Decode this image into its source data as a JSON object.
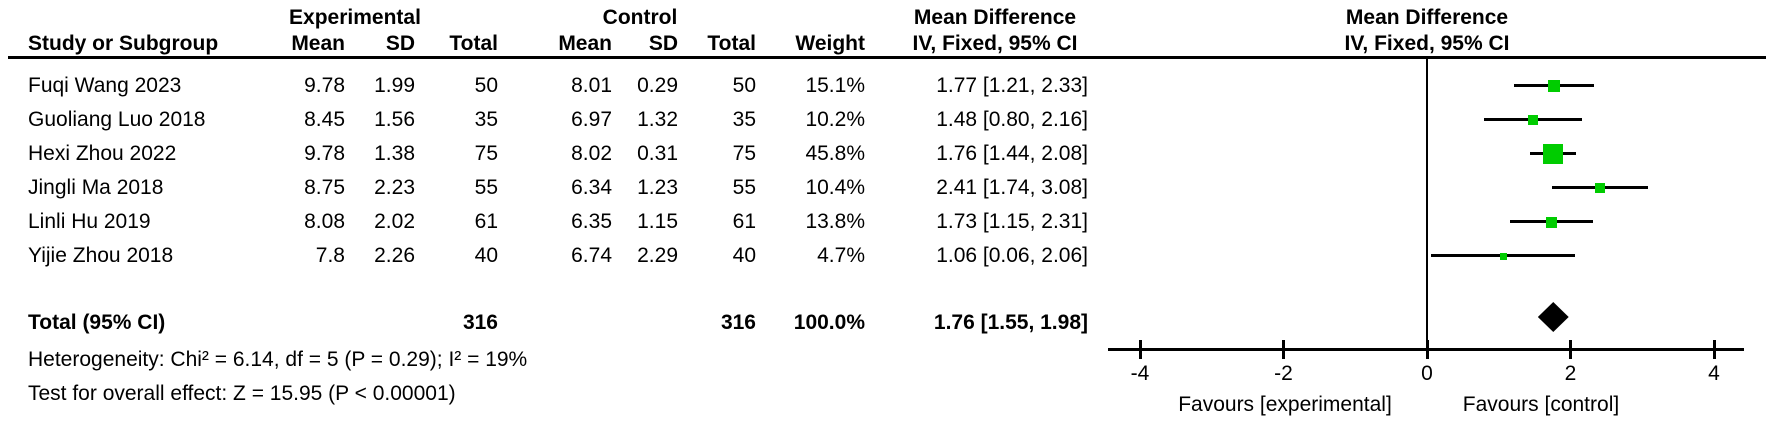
{
  "header": {
    "group_experimental": "Experimental",
    "group_control": "Control",
    "group_md_text": "Mean Difference",
    "group_md_plot": "Mean Difference",
    "col_study": "Study or Subgroup",
    "col_mean_exp": "Mean",
    "col_sd_exp": "SD",
    "col_total_exp": "Total",
    "col_mean_ctrl": "Mean",
    "col_sd_ctrl": "SD",
    "col_total_ctrl": "Total",
    "col_weight": "Weight",
    "col_ci_text": "IV, Fixed, 95% CI",
    "col_ci_plot": "IV, Fixed, 95% CI"
  },
  "studies": [
    {
      "name": "Fuqi Wang 2023",
      "exp_mean": "9.78",
      "exp_sd": "1.99",
      "exp_total": "50",
      "ctrl_mean": "8.01",
      "ctrl_sd": "0.29",
      "ctrl_total": "50",
      "weight": "15.1%",
      "ci_text": "1.77 [1.21, 2.33]",
      "md": 1.77,
      "lo": 1.21,
      "hi": 2.33,
      "weight_pct": 15.1
    },
    {
      "name": "Guoliang Luo 2018",
      "exp_mean": "8.45",
      "exp_sd": "1.56",
      "exp_total": "35",
      "ctrl_mean": "6.97",
      "ctrl_sd": "1.32",
      "ctrl_total": "35",
      "weight": "10.2%",
      "ci_text": "1.48 [0.80, 2.16]",
      "md": 1.48,
      "lo": 0.8,
      "hi": 2.16,
      "weight_pct": 10.2
    },
    {
      "name": "Hexi Zhou 2022",
      "exp_mean": "9.78",
      "exp_sd": "1.38",
      "exp_total": "75",
      "ctrl_mean": "8.02",
      "ctrl_sd": "0.31",
      "ctrl_total": "75",
      "weight": "45.8%",
      "ci_text": "1.76 [1.44, 2.08]",
      "md": 1.76,
      "lo": 1.44,
      "hi": 2.08,
      "weight_pct": 45.8
    },
    {
      "name": "Jingli Ma 2018",
      "exp_mean": "8.75",
      "exp_sd": "2.23",
      "exp_total": "55",
      "ctrl_mean": "6.34",
      "ctrl_sd": "1.23",
      "ctrl_total": "55",
      "weight": "10.4%",
      "ci_text": "2.41 [1.74, 3.08]",
      "md": 2.41,
      "lo": 1.74,
      "hi": 3.08,
      "weight_pct": 10.4
    },
    {
      "name": "Linli Hu 2019",
      "exp_mean": "8.08",
      "exp_sd": "2.02",
      "exp_total": "61",
      "ctrl_mean": "6.35",
      "ctrl_sd": "1.15",
      "ctrl_total": "61",
      "weight": "13.8%",
      "ci_text": "1.73 [1.15, 2.31]",
      "md": 1.73,
      "lo": 1.15,
      "hi": 2.31,
      "weight_pct": 13.8
    },
    {
      "name": "Yijie Zhou 2018",
      "exp_mean": "7.8",
      "exp_sd": "2.26",
      "exp_total": "40",
      "ctrl_mean": "6.74",
      "ctrl_sd": "2.29",
      "ctrl_total": "40",
      "weight": "4.7%",
      "ci_text": "1.06 [0.06, 2.06]",
      "md": 1.06,
      "lo": 0.06,
      "hi": 2.06,
      "weight_pct": 4.7
    }
  ],
  "totals": {
    "label": "Total (95% CI)",
    "exp_total": "316",
    "ctrl_total": "316",
    "weight": "100.0%",
    "ci_text": "1.76 [1.55, 1.98]",
    "md": 1.76,
    "lo": 1.55,
    "hi": 1.98
  },
  "footer": {
    "heterogeneity": "Heterogeneity: Chi² = 6.14, df = 5 (P = 0.29); I² = 19%",
    "overall_effect": "Test for overall effect: Z = 15.95 (P < 0.00001)"
  },
  "axis": {
    "ticks": [
      -4,
      -2,
      0,
      2,
      4
    ],
    "favours_left": "Favours [experimental]",
    "favours_right": "Favours [control]"
  },
  "colors": {
    "square": "#00cc00",
    "diamond": "#000000",
    "line": "#000000",
    "text": "#000000"
  },
  "chart_data": {
    "type": "forest",
    "title": "Mean Difference, IV, Fixed, 95% CI",
    "x_axis": {
      "ticks": [
        -4,
        -2,
        0,
        2,
        4
      ],
      "range": [
        -4.4,
        4.4
      ],
      "label_left": "Favours [experimental]",
      "label_right": "Favours [control]"
    },
    "studies": [
      {
        "name": "Fuqi Wang 2023",
        "md": 1.77,
        "ci": [
          1.21,
          2.33
        ],
        "weight_pct": 15.1
      },
      {
        "name": "Guoliang Luo 2018",
        "md": 1.48,
        "ci": [
          0.8,
          2.16
        ],
        "weight_pct": 10.2
      },
      {
        "name": "Hexi Zhou 2022",
        "md": 1.76,
        "ci": [
          1.44,
          2.08
        ],
        "weight_pct": 45.8
      },
      {
        "name": "Jingli Ma 2018",
        "md": 2.41,
        "ci": [
          1.74,
          3.08
        ],
        "weight_pct": 10.4
      },
      {
        "name": "Linli Hu 2019",
        "md": 1.73,
        "ci": [
          1.15,
          2.31
        ],
        "weight_pct": 13.8
      },
      {
        "name": "Yijie Zhou 2018",
        "md": 1.06,
        "ci": [
          0.06,
          2.06
        ],
        "weight_pct": 4.7
      }
    ],
    "total": {
      "label": "Total (95% CI)",
      "md": 1.76,
      "ci": [
        1.55,
        1.98
      ],
      "weight_pct": 100.0,
      "n_experimental": 316,
      "n_control": 316
    },
    "heterogeneity": "Chi² = 6.14, df = 5 (P = 0.29); I² = 19%",
    "overall_effect": "Z = 15.95 (P < 0.00001)"
  }
}
